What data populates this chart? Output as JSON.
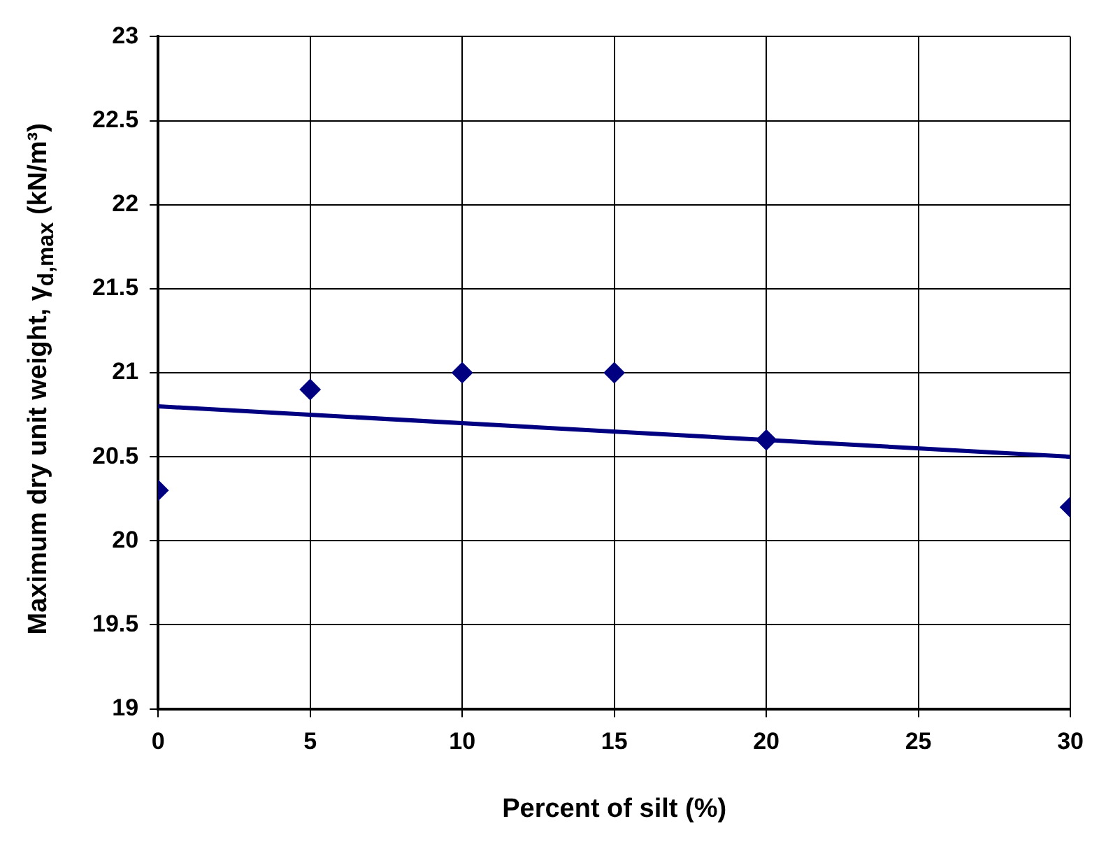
{
  "chart_data": {
    "type": "scatter",
    "xlabel": "Percent of silt (%)",
    "ylabel": "Maximum dry unit weight, γ$_{d,max}$ (kN/m³)",
    "xlim": [
      0,
      30
    ],
    "xticks": [
      0,
      5,
      10,
      15,
      20,
      25,
      30
    ],
    "ylim": [
      19,
      23
    ],
    "yticks": [
      19,
      19.5,
      20,
      20.5,
      21,
      21.5,
      22,
      22.5,
      23
    ],
    "grid": true,
    "legend": false,
    "marker": "diamond",
    "series": [
      {
        "type": "scatter",
        "color": "#000080",
        "x": [
          0,
          5,
          10,
          15,
          20,
          30
        ],
        "values": [
          20.3,
          20.9,
          21,
          21,
          20.6,
          20.2
        ]
      },
      {
        "type": "line",
        "color": "#000080",
        "marker": "none",
        "line_style": "solid",
        "x": [
          0,
          30
        ],
        "values": [
          20.8,
          20.5
        ]
      }
    ]
  }
}
